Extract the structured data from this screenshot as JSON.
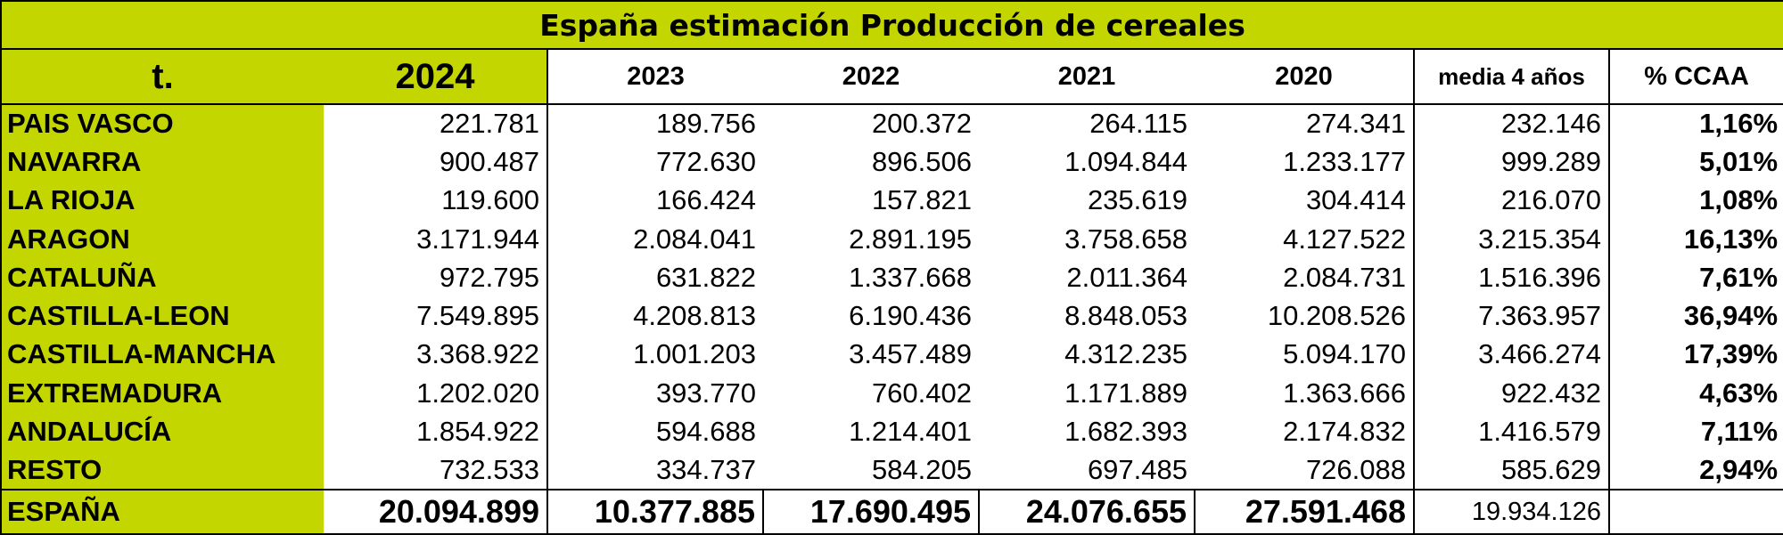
{
  "title": "España estimación Producción de cereales",
  "headers": {
    "unit": "t.",
    "years": [
      "2024",
      "2023",
      "2022",
      "2021",
      "2020"
    ],
    "media": "media 4 años",
    "pct": "% CCAA"
  },
  "rows": [
    {
      "region": "PAIS VASCO",
      "v2024": "221.781",
      "v2023": "189.756",
      "v2022": "200.372",
      "v2021": "264.115",
      "v2020": "274.341",
      "media": "232.146",
      "pct": "1,16%"
    },
    {
      "region": "NAVARRA",
      "v2024": "900.487",
      "v2023": "772.630",
      "v2022": "896.506",
      "v2021": "1.094.844",
      "v2020": "1.233.177",
      "media": "999.289",
      "pct": "5,01%"
    },
    {
      "region": "LA RIOJA",
      "v2024": "119.600",
      "v2023": "166.424",
      "v2022": "157.821",
      "v2021": "235.619",
      "v2020": "304.414",
      "media": "216.070",
      "pct": "1,08%"
    },
    {
      "region": "ARAGON",
      "v2024": "3.171.944",
      "v2023": "2.084.041",
      "v2022": "2.891.195",
      "v2021": "3.758.658",
      "v2020": "4.127.522",
      "media": "3.215.354",
      "pct": "16,13%"
    },
    {
      "region": "CATALUÑA",
      "v2024": "972.795",
      "v2023": "631.822",
      "v2022": "1.337.668",
      "v2021": "2.011.364",
      "v2020": "2.084.731",
      "media": "1.516.396",
      "pct": "7,61%"
    },
    {
      "region": "CASTILLA-LEON",
      "v2024": "7.549.895",
      "v2023": "4.208.813",
      "v2022": "6.190.436",
      "v2021": "8.848.053",
      "v2020": "10.208.526",
      "media": "7.363.957",
      "pct": "36,94%"
    },
    {
      "region": "CASTILLA-MANCHA",
      "v2024": "3.368.922",
      "v2023": "1.001.203",
      "v2022": "3.457.489",
      "v2021": "4.312.235",
      "v2020": "5.094.170",
      "media": "3.466.274",
      "pct": "17,39%"
    },
    {
      "region": "EXTREMADURA",
      "v2024": "1.202.020",
      "v2023": "393.770",
      "v2022": "760.402",
      "v2021": "1.171.889",
      "v2020": "1.363.666",
      "media": "922.432",
      "pct": "4,63%"
    },
    {
      "region": "ANDALUCÍA",
      "v2024": "1.854.922",
      "v2023": "594.688",
      "v2022": "1.214.401",
      "v2021": "1.682.393",
      "v2020": "2.174.832",
      "media": "1.416.579",
      "pct": "7,11%"
    },
    {
      "region": "RESTO",
      "v2024": "732.533",
      "v2023": "334.737",
      "v2022": "584.205",
      "v2021": "697.485",
      "v2020": "726.088",
      "media": "585.629",
      "pct": "2,94%"
    }
  ],
  "total": {
    "region": "ESPAÑA",
    "v2024": "20.094.899",
    "v2023": "10.377.885",
    "v2022": "17.690.495",
    "v2021": "24.076.655",
    "v2020": "27.591.468",
    "media": "19.934.126",
    "pct": ""
  },
  "colors": {
    "accent_green": "#c4d600"
  }
}
